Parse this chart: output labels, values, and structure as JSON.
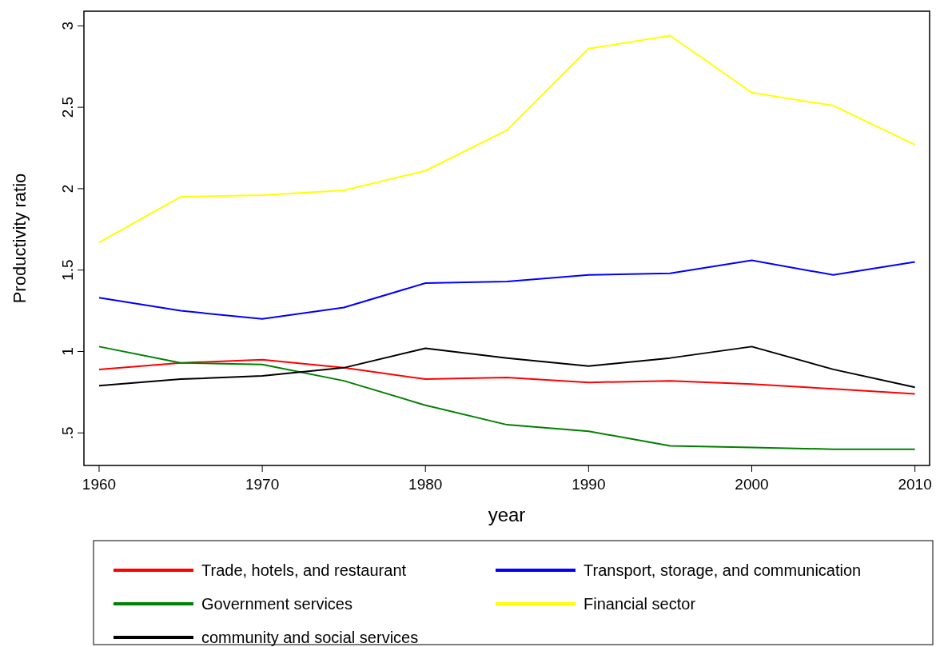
{
  "chart_data": {
    "type": "line",
    "xlabel": "year",
    "ylabel": "Productivity ratio",
    "x": [
      1960,
      1965,
      1970,
      1975,
      1980,
      1985,
      1990,
      1995,
      2000,
      2005,
      2010
    ],
    "xlim": [
      1959.07,
      2010.9
    ],
    "ylim": [
      0.3,
      3.09
    ],
    "xticks": [
      1960,
      1970,
      1980,
      1990,
      2000,
      2010
    ],
    "yticks": [
      {
        "value": 0.5,
        "label": ".5"
      },
      1,
      1.5,
      2,
      2.5,
      3
    ],
    "grid": false,
    "legend": "bottom",
    "marker": "none",
    "line_style": "solid",
    "series": [
      {
        "name": "Trade, hotels, and restaurant",
        "color": "#ff0000",
        "values": [
          0.89,
          0.93,
          0.95,
          0.9,
          0.83,
          0.84,
          0.81,
          0.82,
          0.8,
          0.77,
          0.74
        ]
      },
      {
        "name": "Transport, storage, and communication",
        "color": "#0000ff",
        "values": [
          1.33,
          1.25,
          1.2,
          1.27,
          1.42,
          1.43,
          1.47,
          1.48,
          1.56,
          1.47,
          1.55
        ]
      },
      {
        "name": "Government services",
        "color": "#008000",
        "values": [
          1.03,
          0.93,
          0.92,
          0.82,
          0.67,
          0.55,
          0.51,
          0.42,
          0.41,
          0.4,
          0.4
        ]
      },
      {
        "name": "Financial sector",
        "color": "#ffff00",
        "values": [
          1.67,
          1.95,
          1.96,
          1.99,
          2.11,
          2.36,
          2.86,
          2.94,
          2.59,
          2.51,
          2.27
        ]
      },
      {
        "name": "community and social services",
        "color": "#000000",
        "values": [
          0.79,
          0.83,
          0.85,
          0.9,
          1.02,
          0.96,
          0.91,
          0.96,
          1.03,
          0.89,
          0.78
        ]
      }
    ]
  }
}
